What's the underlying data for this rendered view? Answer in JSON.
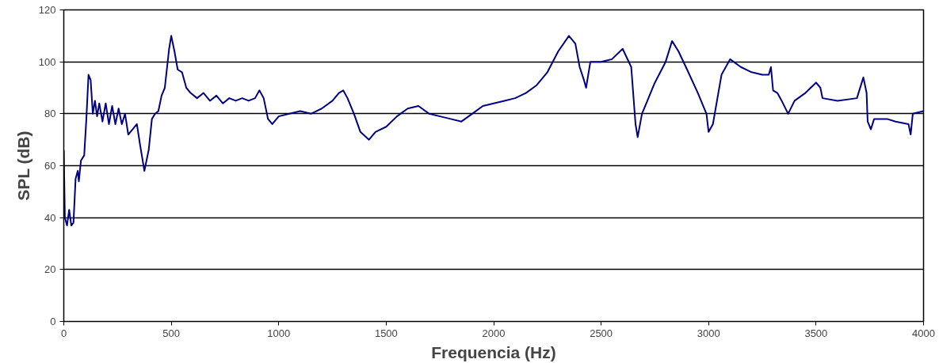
{
  "chart_data": {
    "type": "line",
    "xlabel": "Frequencia (Hz)",
    "ylabel": "SPL (dB)",
    "xlim": [
      0,
      4000
    ],
    "xticks": [
      0,
      500,
      1000,
      1500,
      2000,
      2500,
      3000,
      3500,
      4000
    ],
    "ylim": [
      0,
      120
    ],
    "yticks": [
      0,
      20,
      40,
      60,
      80,
      100,
      120
    ],
    "grid": "y",
    "series": [
      {
        "color": "#000080",
        "x": [
          0,
          5,
          15,
          25,
          35,
          45,
          55,
          65,
          70,
          80,
          95,
          105,
          115,
          125,
          135,
          145,
          155,
          165,
          180,
          195,
          210,
          225,
          240,
          255,
          270,
          285,
          300,
          320,
          340,
          355,
          375,
          395,
          410,
          425,
          440,
          455,
          470,
          490,
          500,
          515,
          530,
          550,
          570,
          590,
          620,
          650,
          680,
          710,
          740,
          770,
          800,
          830,
          860,
          890,
          910,
          930,
          950,
          970,
          1000,
          1050,
          1100,
          1150,
          1200,
          1250,
          1280,
          1300,
          1320,
          1350,
          1380,
          1420,
          1450,
          1500,
          1550,
          1600,
          1650,
          1700,
          1750,
          1800,
          1850,
          1900,
          1950,
          2000,
          2050,
          2100,
          2150,
          2200,
          2250,
          2300,
          2350,
          2380,
          2400,
          2420,
          2430,
          2450,
          2500,
          2550,
          2600,
          2640,
          2660,
          2670,
          2690,
          2720,
          2750,
          2800,
          2830,
          2860,
          2900,
          2950,
          2990,
          3000,
          3020,
          3060,
          3100,
          3150,
          3200,
          3250,
          3280,
          3290,
          3300,
          3320,
          3340,
          3370,
          3400,
          3450,
          3500,
          3520,
          3530,
          3600,
          3690,
          3720,
          3735,
          3740,
          3755,
          3770,
          3830,
          3870,
          3930,
          3940,
          3950,
          4000
        ],
        "values": [
          66,
          40,
          37,
          43,
          37,
          38,
          55,
          58,
          54,
          62,
          64,
          78,
          95,
          93,
          80,
          85,
          79,
          84,
          77,
          84,
          76,
          83,
          76,
          82,
          76,
          80,
          72,
          74,
          76,
          68,
          58,
          66,
          78,
          80,
          81,
          87,
          90,
          105,
          110,
          104,
          97,
          96,
          90,
          88,
          86,
          88,
          85,
          87,
          84,
          86,
          85,
          86,
          85,
          86,
          89,
          86,
          78,
          76,
          79,
          80,
          81,
          80,
          82,
          85,
          88,
          89,
          86,
          80,
          73,
          70,
          73,
          75,
          79,
          82,
          83,
          80,
          79,
          78,
          77,
          80,
          83,
          84,
          85,
          86,
          88,
          91,
          96,
          104,
          110,
          107,
          98,
          93,
          90,
          100,
          100,
          101,
          105,
          98,
          76,
          71,
          80,
          86,
          92,
          100,
          108,
          104,
          97,
          88,
          80,
          73,
          76,
          95,
          101,
          98,
          96,
          95,
          95,
          98,
          89,
          88,
          85,
          80,
          85,
          88,
          92,
          90,
          86,
          85,
          86,
          94,
          88,
          77,
          74,
          78,
          78,
          77,
          76,
          72,
          80,
          81
        ]
      }
    ]
  }
}
